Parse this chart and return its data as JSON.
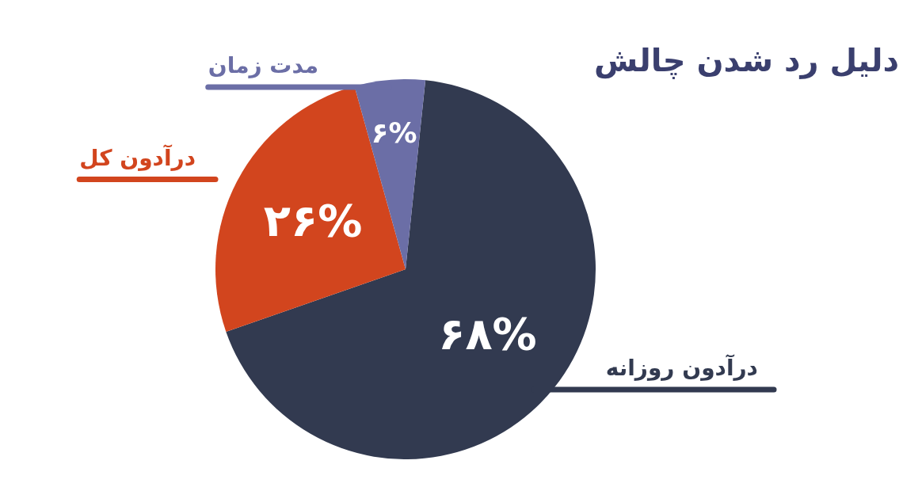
{
  "chart_data": {
    "type": "pie",
    "title": "دلیل رد شدن چالش",
    "categories": [
      "درآدون روزانه",
      "درآدون کل",
      "مدت زمان"
    ],
    "values": [
      68,
      26,
      6
    ],
    "colors": [
      "#323a50",
      "#d2451e",
      "#6b6ea6"
    ],
    "value_labels": [
      "۶۸%",
      "۲۶%",
      "۶%"
    ],
    "legend": false
  }
}
